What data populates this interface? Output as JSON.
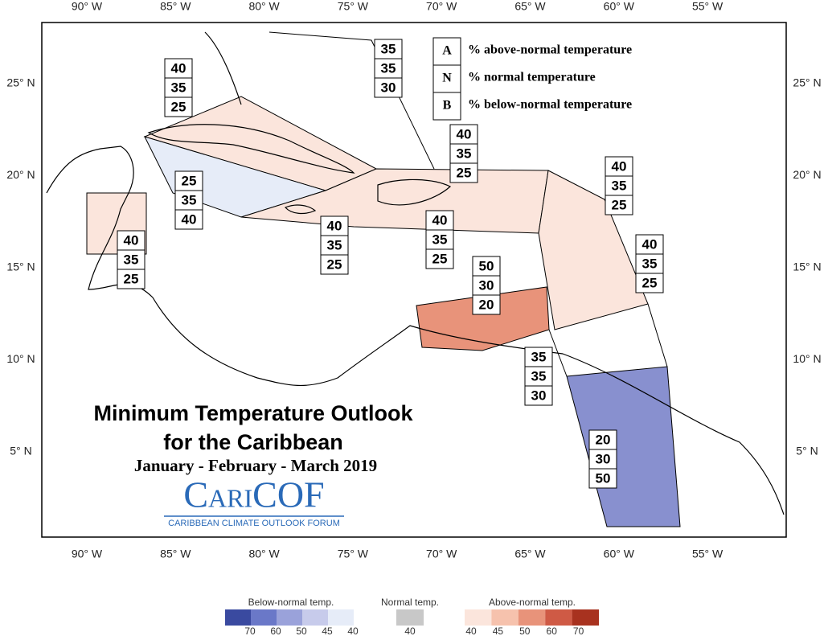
{
  "lon_labels_top": [
    "90° W",
    "85° W",
    "80° W",
    "75° W",
    "70° W",
    "65° W",
    "60° W",
    "55° W"
  ],
  "lon_labels_bottom": [
    "90° W",
    "85° W",
    "80° W",
    "75° W",
    "70° W",
    "65° W",
    "60° W",
    "55° W"
  ],
  "lat_labels_left": [
    "25° N",
    "20° N",
    "15° N",
    "10° N",
    "5° N"
  ],
  "lat_labels_right": [
    "25° N",
    "20° N",
    "15° N",
    "10° N",
    "5° N"
  ],
  "key": [
    {
      "letter": "A",
      "text": "% above-normal temperature"
    },
    {
      "letter": "N",
      "text": "% normal temperature"
    },
    {
      "letter": "B",
      "text": "% below-normal temperature"
    }
  ],
  "regions": [
    {
      "values": [
        40,
        35,
        25
      ]
    },
    {
      "values": [
        35,
        35,
        30
      ]
    },
    {
      "values": [
        40,
        35,
        25
      ]
    },
    {
      "values": [
        40,
        35,
        25
      ]
    },
    {
      "values": [
        25,
        35,
        40
      ]
    },
    {
      "values": [
        40,
        35,
        25
      ]
    },
    {
      "values": [
        40,
        35,
        25
      ]
    },
    {
      "values": [
        40,
        35,
        25
      ]
    },
    {
      "values": [
        40,
        35,
        25
      ]
    },
    {
      "values": [
        50,
        30,
        20
      ]
    },
    {
      "values": [
        35,
        35,
        30
      ]
    },
    {
      "values": [
        20,
        30,
        50
      ]
    }
  ],
  "title": "Minimum Temperature Outlook",
  "title2": "for the Caribbean",
  "subtitle": "January - February - March 2019",
  "logo": "CariCOF",
  "logo_sub": "CARIBBEAN CLIMATE OUTLOOK FORUM",
  "colorbar": [
    {
      "label": "Below-normal temp.",
      "ticks": [
        70,
        60,
        50,
        45,
        40
      ],
      "colors": [
        "#3a4aa0",
        "#6a78c8",
        "#9aa2da",
        "#c7cbeb",
        "#e6ecf8"
      ]
    },
    {
      "label": "Normal temp.",
      "ticks": [
        40
      ],
      "colors": [
        "#c8c8c8"
      ]
    },
    {
      "label": "Above-normal temp.",
      "ticks": [
        40,
        45,
        50,
        60,
        70
      ],
      "colors": [
        "#fbe5dc",
        "#f6c2ad",
        "#e8937a",
        "#cf5a45",
        "#a8321f"
      ]
    }
  ]
}
